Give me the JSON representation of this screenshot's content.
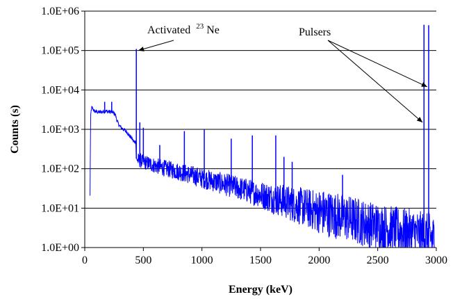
{
  "chart_data": {
    "type": "line",
    "title": "",
    "xlabel": "Energy (keV)",
    "ylabel": "Counts (s)",
    "xlim": [
      0,
      3000
    ],
    "ylim": [
      1,
      1000000
    ],
    "yscale": "log",
    "grid": "horizontal major gridlines",
    "legend": "none",
    "series_color": "#0000ff",
    "x_ticks": [
      0,
      500,
      1000,
      1500,
      2000,
      2500,
      3000
    ],
    "x_tick_labels": [
      "0",
      "500",
      "1000",
      "1500",
      "2000",
      "2500",
      "3000"
    ],
    "y_ticks": [
      1,
      10,
      100,
      1000,
      10000,
      100000,
      1000000
    ],
    "y_tick_labels": [
      "1.0E+00",
      "1.0E+01",
      "1.0E+02",
      "1.0E+03",
      "1.0E+04",
      "1.0E+05",
      "1.0E+06"
    ],
    "series": [
      {
        "x": [
          45,
          50,
          55,
          60,
          70,
          80,
          100,
          120,
          150,
          180,
          210,
          240,
          260,
          270,
          280,
          300,
          320,
          340,
          360,
          380,
          400,
          420,
          435,
          440,
          445,
          450,
          470,
          500,
          600,
          700,
          800,
          900,
          1000,
          1100,
          1200,
          1300,
          1400,
          1500,
          1600,
          1700,
          1800,
          1900,
          2000,
          2100,
          2200,
          2300,
          2400,
          2500,
          2600,
          2700,
          2800,
          2850,
          2900,
          2950,
          2990
        ],
        "y": [
          20,
          2000,
          3000,
          3600,
          3300,
          2900,
          2800,
          2700,
          2800,
          2900,
          2800,
          2700,
          2400,
          1900,
          1500,
          1200,
          1050,
          950,
          850,
          700,
          600,
          480,
          500,
          180,
          170,
          165,
          160,
          150,
          120,
          100,
          85,
          70,
          58,
          48,
          40,
          33,
          27,
          22,
          18,
          15,
          12,
          10,
          8,
          7,
          6,
          5,
          4,
          3.5,
          3,
          2.6,
          2.4,
          2.2,
          2,
          1.8,
          1.6
        ]
      }
    ],
    "peaks": [
      {
        "x": 440,
        "y": 110000
      },
      {
        "x": 2895,
        "y": 450000
      },
      {
        "x": 2935,
        "y": 440000
      },
      {
        "x": 170,
        "y": 5000
      },
      {
        "x": 230,
        "y": 5000
      },
      {
        "x": 470,
        "y": 1500
      },
      {
        "x": 500,
        "y": 1100
      },
      {
        "x": 640,
        "y": 400
      },
      {
        "x": 850,
        "y": 900
      },
      {
        "x": 1020,
        "y": 1000
      },
      {
        "x": 1250,
        "y": 580
      },
      {
        "x": 1430,
        "y": 700
      },
      {
        "x": 1630,
        "y": 700
      },
      {
        "x": 1700,
        "y": 200
      },
      {
        "x": 1770,
        "y": 150
      },
      {
        "x": 2200,
        "y": 70
      }
    ],
    "annotations": [
      {
        "text": "Activated",
        "sup": "23",
        "suffix": " Ne",
        "target": {
          "x": 445,
          "y": 100000
        }
      },
      {
        "text": "Pulsers",
        "targets": [
          {
            "x": 2940,
            "y": 12000
          },
          {
            "x": 2900,
            "y": 1500
          }
        ]
      }
    ]
  }
}
